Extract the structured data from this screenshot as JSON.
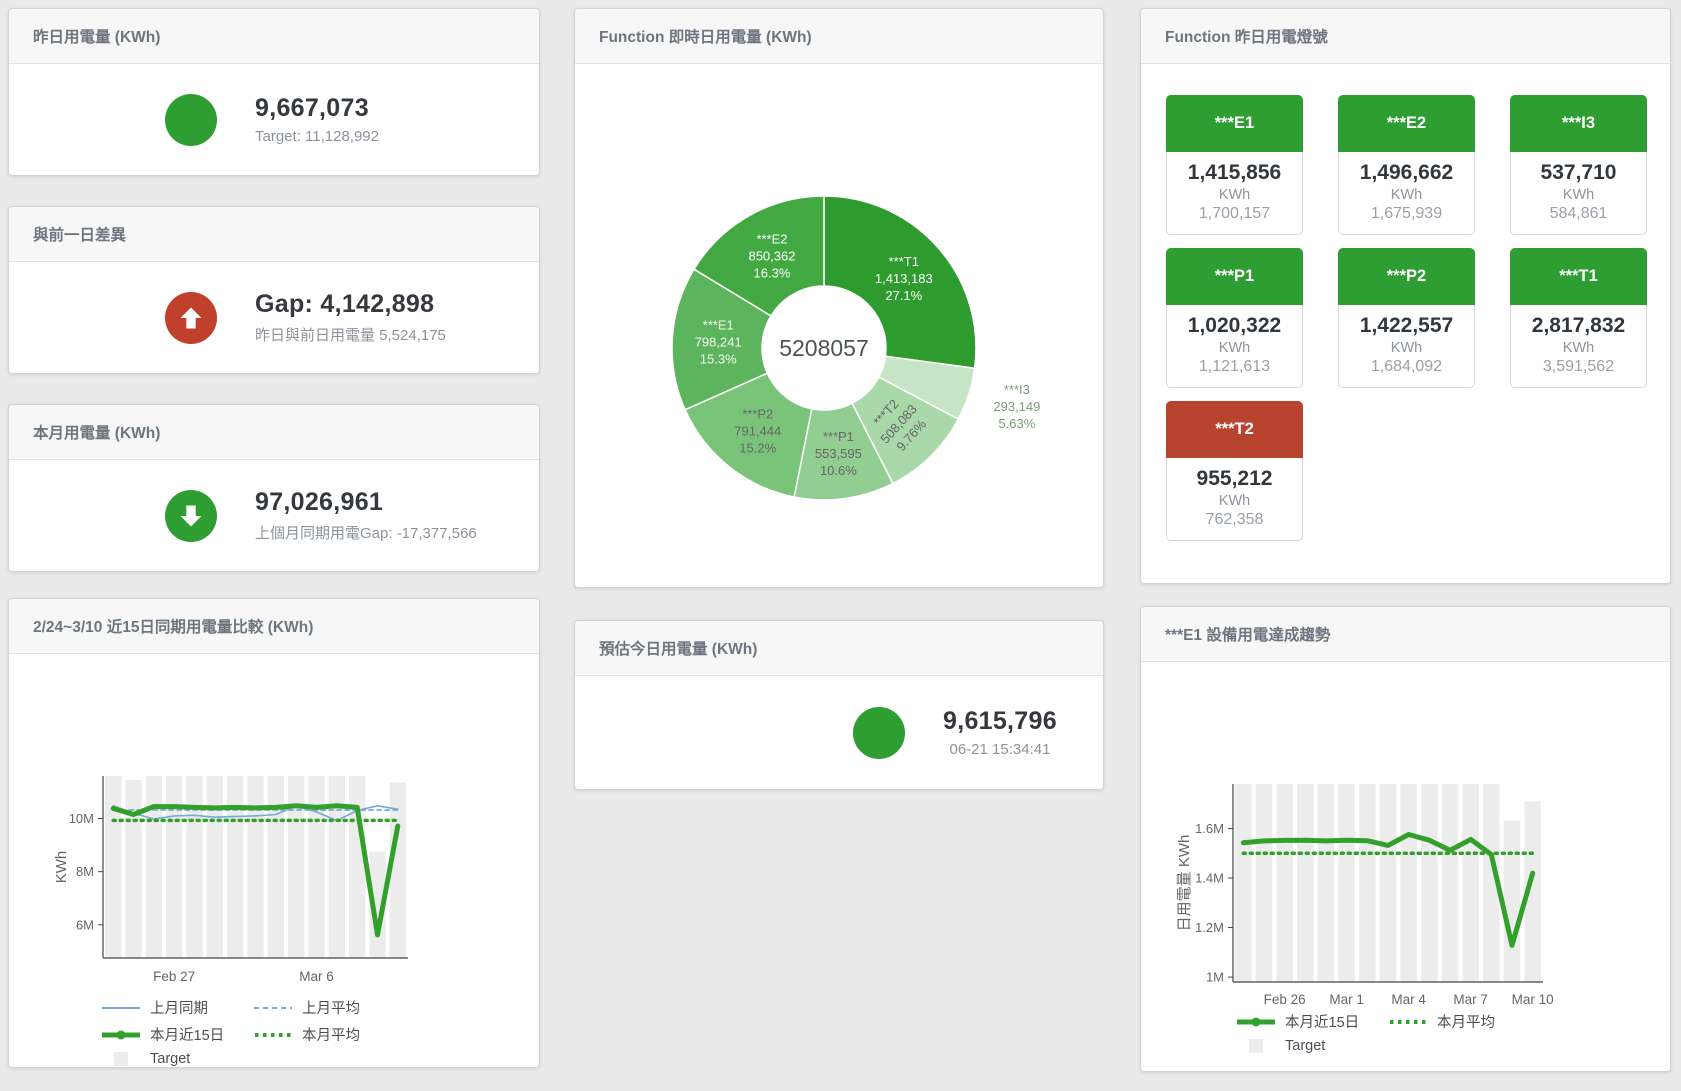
{
  "colors": {
    "green": "#2e9d32",
    "red_circle": "#c0402c",
    "red_tile": "#b8432f",
    "bar_fill": "#ececec",
    "blue_line": "#74a9d8",
    "green_line": "#33a02c",
    "axis": "#444444",
    "tick_text": "#666666"
  },
  "cards": {
    "yesterday": {
      "title": "昨日用電量 (KWh)",
      "value": "9,667,073",
      "subtitle": "Target: 11,128,992"
    },
    "day_gap": {
      "title": "與前一日差異",
      "value": "Gap: 4,142,898",
      "subtitle": "昨日與前日用電量 5,524,175"
    },
    "month": {
      "title": "本月用電量 (KWh)",
      "value": "97,026,961",
      "subtitle": "上個月同期用電Gap: -17,377,566"
    },
    "estimate": {
      "title": "預估今日用電量 (KWh)",
      "value": "9,615,796",
      "timestamp": "06-21 15:34:41"
    }
  },
  "lamp_card": {
    "title": "Function 昨日用電燈號",
    "tiles": [
      {
        "name": "***E1",
        "value": "1,415,856",
        "unit": "KWh",
        "target": "1,700,157",
        "status": "green"
      },
      {
        "name": "***E2",
        "value": "1,496,662",
        "unit": "KWh",
        "target": "1,675,939",
        "status": "green"
      },
      {
        "name": "***I3",
        "value": "537,710",
        "unit": "KWh",
        "target": "584,861",
        "status": "green"
      },
      {
        "name": "***P1",
        "value": "1,020,322",
        "unit": "KWh",
        "target": "1,121,613",
        "status": "green"
      },
      {
        "name": "***P2",
        "value": "1,422,557",
        "unit": "KWh",
        "target": "1,684,092",
        "status": "green"
      },
      {
        "name": "***T1",
        "value": "2,817,832",
        "unit": "KWh",
        "target": "3,591,562",
        "status": "green"
      },
      {
        "name": "***T2",
        "value": "955,212",
        "unit": "KWh",
        "target": "762,358",
        "status": "red"
      }
    ]
  },
  "chart_data": [
    {
      "id": "realtime_donut",
      "type": "pie",
      "title": "Function 即時日用電量 (KWh)",
      "center_total": "5208057",
      "slices": [
        {
          "name": "***T1",
          "value": 1413183,
          "value_label": "1,413,183",
          "pct": "27.1%",
          "color": "#2d9b2d",
          "label_color": "#ffffff"
        },
        {
          "name": "***I3",
          "value": 293149,
          "value_label": "293,149",
          "pct": "5.63%",
          "color": "#c6e5c6",
          "label_color": "#7d9a7d",
          "outside": true
        },
        {
          "name": "***T2",
          "value": 508083,
          "value_label": "508,083",
          "pct": "9.76%",
          "color": "#a9d8a9",
          "label_color": "#666666",
          "rotate": -48
        },
        {
          "name": "***P1",
          "value": 553595,
          "value_label": "553,595",
          "pct": "10.6%",
          "color": "#92ce92",
          "label_color": "#666666"
        },
        {
          "name": "***P2",
          "value": 791444,
          "value_label": "791,444",
          "pct": "15.2%",
          "color": "#7ac47a",
          "label_color": "#666666"
        },
        {
          "name": "***E1",
          "value": 798241,
          "value_label": "798,241",
          "pct": "15.3%",
          "color": "#5cb55c",
          "label_color": "#f4faf4"
        },
        {
          "name": "***E2",
          "value": 850362,
          "value_label": "850,362",
          "pct": "16.3%",
          "color": "#42a842",
          "label_color": "#ffffff"
        }
      ]
    },
    {
      "id": "compare15",
      "type": "line",
      "title": "2/24~3/10 近15日同期用電量比較 (KWh)",
      "ylabel": "KWh",
      "ylim": [
        4.75,
        11.6
      ],
      "yticks": [
        {
          "v": 6,
          "label": "6M"
        },
        {
          "v": 8,
          "label": "8M"
        },
        {
          "v": 10,
          "label": "10M"
        }
      ],
      "n": 15,
      "xticks": [
        {
          "i": 3,
          "label": "Feb 27"
        },
        {
          "i": 10,
          "label": "Mar 6"
        }
      ],
      "grid": false,
      "legend_position": "bottom-left",
      "target": {
        "label": "Target",
        "values": [
          11.6,
          11.45,
          11.6,
          11.6,
          11.6,
          11.6,
          11.6,
          11.6,
          11.6,
          11.6,
          11.6,
          11.6,
          11.6,
          8.75,
          11.35
        ]
      },
      "series": [
        {
          "name": "上月同期",
          "color": "#74a9d8",
          "width": 1.6,
          "dash": "",
          "values": [
            10.48,
            10.2,
            9.98,
            10.1,
            10.12,
            10.05,
            10.08,
            10.1,
            10.15,
            10.48,
            10.25,
            9.92,
            10.3,
            10.48,
            10.35
          ]
        },
        {
          "name": "上月平均",
          "color": "#74a9d8",
          "width": 1.8,
          "dash": "4,4",
          "values": [
            10.32,
            10.32,
            10.32,
            10.32,
            10.32,
            10.32,
            10.32,
            10.32,
            10.32,
            10.32,
            10.32,
            10.32,
            10.32,
            10.32,
            10.32
          ]
        },
        {
          "name": "本月近15日",
          "color": "#33a02c",
          "width": 5,
          "dash": "",
          "values": [
            10.38,
            10.15,
            10.45,
            10.45,
            10.42,
            10.4,
            10.42,
            10.4,
            10.42,
            10.48,
            10.42,
            10.48,
            10.42,
            5.62,
            9.72
          ]
        },
        {
          "name": "本月平均",
          "color": "#33a02c",
          "width": 3.5,
          "dash": "2,5",
          "values": [
            9.93,
            9.93,
            9.93,
            9.93,
            9.93,
            9.93,
            9.93,
            9.93,
            9.93,
            9.93,
            9.93,
            9.93,
            9.93,
            9.93,
            9.93
          ]
        }
      ]
    },
    {
      "id": "e1_trend",
      "type": "line",
      "title": "***E1 設備用電達成趨勢",
      "ylabel": "日用電量 KWh",
      "ylim": [
        0.98,
        1.78
      ],
      "yticks": [
        {
          "v": 1,
          "label": "1M"
        },
        {
          "v": 1.2,
          "label": "1.2M"
        },
        {
          "v": 1.4,
          "label": "1.4M"
        },
        {
          "v": 1.6,
          "label": "1.6M"
        }
      ],
      "n": 15,
      "xticks": [
        {
          "i": 2,
          "label": "Feb 26"
        },
        {
          "i": 5,
          "label": "Mar 1"
        },
        {
          "i": 8,
          "label": "Mar 4"
        },
        {
          "i": 11,
          "label": "Mar 7"
        },
        {
          "i": 14,
          "label": "Mar 10"
        }
      ],
      "grid": false,
      "legend_position": "bottom-left",
      "target": {
        "label": "Target",
        "values": [
          1.78,
          1.78,
          1.78,
          1.78,
          1.78,
          1.78,
          1.78,
          1.78,
          1.78,
          1.78,
          1.78,
          1.78,
          1.78,
          1.63,
          1.71
        ]
      },
      "series": [
        {
          "name": "本月近15日",
          "color": "#33a02c",
          "width": 5,
          "dash": "",
          "values": [
            1.543,
            1.55,
            1.552,
            1.553,
            1.55,
            1.553,
            1.551,
            1.532,
            1.576,
            1.553,
            1.512,
            1.556,
            1.495,
            1.128,
            1.42
          ]
        },
        {
          "name": "本月平均",
          "color": "#33a02c",
          "width": 3.5,
          "dash": "2,5",
          "values": [
            1.5,
            1.5,
            1.5,
            1.5,
            1.5,
            1.5,
            1.5,
            1.5,
            1.5,
            1.5,
            1.5,
            1.5,
            1.5,
            1.5,
            1.5
          ]
        }
      ]
    }
  ]
}
